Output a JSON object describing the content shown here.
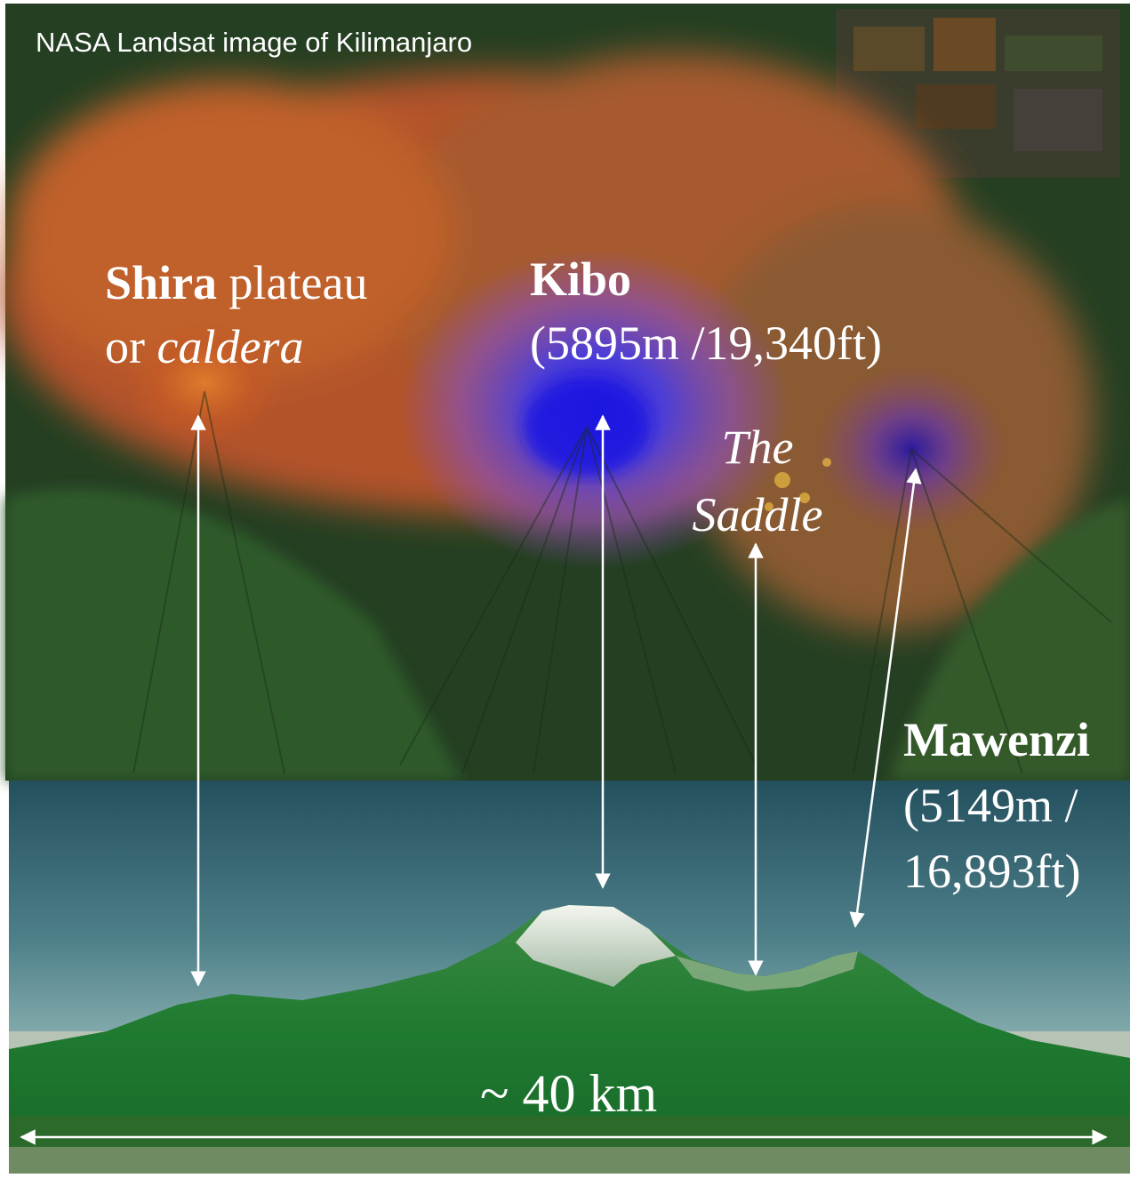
{
  "caption": "NASA Landsat image of Kilimanjaro",
  "shira": {
    "name": "Shira",
    "line1_rest": " plateau",
    "line2_prefix": "or ",
    "line2_italic": "caldera"
  },
  "kibo": {
    "name": "Kibo",
    "elevation": "(5895m /19,340ft)"
  },
  "saddle": {
    "line1": "The",
    "line2": "Saddle"
  },
  "mawenzi": {
    "name": "Mawenzi",
    "elev_line1": "(5149m /",
    "elev_line2": "16,893ft)"
  },
  "scale": {
    "label": "~ 40 km"
  },
  "colors": {
    "label_text": "#ffffff",
    "arrow": "#ffffff",
    "sky_top": "#2a5a66",
    "sky_bottom": "#6f9ba0",
    "forest": "#1f7a34",
    "snow": "#e9efe8",
    "volcano_blue": "#2b27d6",
    "lava_orange": "#c65a22"
  }
}
